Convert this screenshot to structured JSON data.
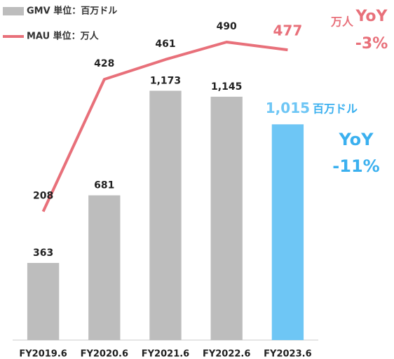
{
  "chart_data": {
    "type": "bar_line",
    "categories": [
      "FY2019.6",
      "FY2020.6",
      "FY2021.6",
      "FY2022.6",
      "FY2023.6"
    ],
    "series": [
      {
        "name": "GMV 単位：百万ドル",
        "type": "bar",
        "color": "#bdbdbd",
        "colors": [
          "#bdbdbd",
          "#bdbdbd",
          "#bdbdbd",
          "#bdbdbd",
          "#6ec6f5"
        ],
        "label_colors": [
          "#222222",
          "#222222",
          "#222222",
          "#222222",
          "#6ec6f5"
        ],
        "values": [
          363,
          681,
          1173,
          1145,
          1015
        ],
        "value_labels": [
          "363",
          "681",
          "1,173",
          "1,145",
          "1,015"
        ]
      },
      {
        "name": "MAU 単位：万人",
        "type": "line",
        "axis": "y2",
        "color": "#e8707a",
        "label_colors": [
          "#222222",
          "#222222",
          "#222222",
          "#222222",
          "#e8707a"
        ],
        "values": [
          208,
          428,
          461,
          490,
          477
        ]
      }
    ],
    "ylim": [
      0,
      1600
    ],
    "y2lim": [
      0,
      560
    ],
    "grid": false,
    "legend": "top-left",
    "annotations": [
      {
        "text": "万人",
        "color": "#e8707a"
      },
      {
        "text": "YoY",
        "color": "#e8707a"
      },
      {
        "text": "-3%",
        "color": "#e8707a"
      },
      {
        "text": "百万ドル",
        "color": "#3bb0ef"
      },
      {
        "text": "YoY",
        "color": "#3bb0ef"
      },
      {
        "text": "-11%",
        "color": "#3bb0ef"
      }
    ]
  }
}
